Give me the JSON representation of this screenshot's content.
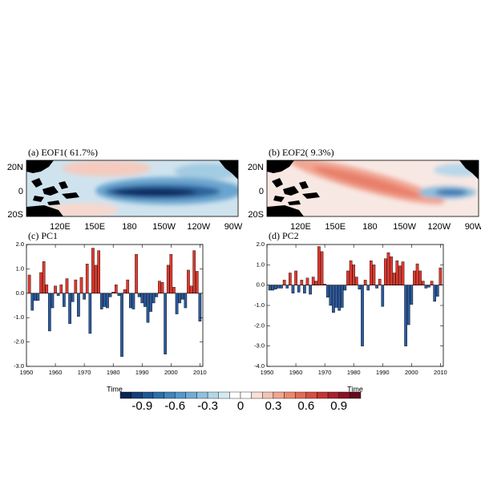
{
  "maps": [
    {
      "title": "(a) EOF1( 61.7%)",
      "lat_labels": [
        "20N",
        "0",
        "20S"
      ],
      "lon_labels": [
        "120E",
        "150E",
        "180",
        "150W",
        "120W",
        "90W"
      ]
    },
    {
      "title": "(b) EOF2(  9.3%)",
      "lat_labels": [
        "20N",
        "0",
        "20S"
      ],
      "lon_labels": [
        "120E",
        "150E",
        "180",
        "150W",
        "120W",
        "90W"
      ]
    }
  ],
  "chart_data": [
    {
      "type": "bar",
      "title": "(c) PC1",
      "x_label": "Time",
      "x": [
        1951,
        1952,
        1953,
        1954,
        1955,
        1956,
        1957,
        1958,
        1959,
        1960,
        1961,
        1962,
        1963,
        1964,
        1965,
        1966,
        1967,
        1968,
        1969,
        1970,
        1971,
        1972,
        1973,
        1974,
        1975,
        1976,
        1977,
        1978,
        1979,
        1980,
        1981,
        1982,
        1983,
        1984,
        1985,
        1986,
        1987,
        1988,
        1989,
        1990,
        1991,
        1992,
        1993,
        1994,
        1995,
        1996,
        1997,
        1998,
        1999,
        2000,
        2001,
        2002,
        2003,
        2004,
        2005,
        2006,
        2007,
        2008,
        2009,
        2010
      ],
      "values": [
        0.75,
        -0.7,
        -0.3,
        -0.3,
        0.85,
        1.3,
        0.35,
        -1.55,
        -0.6,
        0.3,
        -0.1,
        0.35,
        -0.55,
        0.6,
        -1.25,
        -0.35,
        0.55,
        -0.95,
        0.65,
        -0.25,
        1.2,
        -1.65,
        1.85,
        1.15,
        1.75,
        -0.65,
        -0.55,
        -0.6,
        -0.15,
        0.05,
        0.35,
        -0.1,
        -2.6,
        0.15,
        0.55,
        -0.6,
        -0.65,
        1.6,
        -0.15,
        -0.4,
        -0.55,
        -1.2,
        -0.75,
        -0.4,
        -0.15,
        0.5,
        0.45,
        -2.5,
        1.15,
        1.6,
        0.25,
        -0.85,
        -0.4,
        -0.25,
        -0.6,
        0.95,
        0.3,
        1.75,
        0.9,
        -1.15
      ],
      "positive_color": "#e03a2f",
      "negative_color": "#2b5a9e",
      "xlim": [
        1950,
        2011
      ],
      "xticks": [
        1950,
        1960,
        1970,
        1980,
        1990,
        2000,
        2010
      ],
      "ylim": [
        -3,
        2
      ],
      "yticks": [
        {
          "value": 2,
          "label": "2.0"
        },
        {
          "value": 1,
          "label": "1.0"
        },
        {
          "value": 0,
          "label": "0.0"
        },
        {
          "value": -1,
          "label": "-1.0"
        },
        {
          "value": -2,
          "label": "-2.0"
        },
        {
          "value": -3,
          "label": "-3.0"
        }
      ]
    },
    {
      "type": "bar",
      "title": "(d) PC2",
      "x_label": "Time",
      "x": [
        1951,
        1952,
        1953,
        1954,
        1955,
        1956,
        1957,
        1958,
        1959,
        1960,
        1961,
        1962,
        1963,
        1964,
        1965,
        1966,
        1967,
        1968,
        1969,
        1970,
        1971,
        1972,
        1973,
        1974,
        1975,
        1976,
        1977,
        1978,
        1979,
        1980,
        1981,
        1982,
        1983,
        1984,
        1985,
        1986,
        1987,
        1988,
        1989,
        1990,
        1991,
        1992,
        1993,
        1994,
        1995,
        1996,
        1997,
        1998,
        1999,
        2000,
        2001,
        2002,
        2003,
        2004,
        2005,
        2006,
        2007,
        2008,
        2009,
        2010
      ],
      "values": [
        -0.25,
        -0.25,
        -0.2,
        -0.15,
        -0.15,
        0.25,
        -0.15,
        0.6,
        -0.4,
        0.7,
        -0.35,
        0.25,
        -0.4,
        0.35,
        -0.45,
        0.4,
        0.2,
        1.9,
        1.65,
        0.05,
        -0.6,
        -1.0,
        -1.35,
        -1.1,
        -1.25,
        -1.1,
        -0.25,
        0.7,
        1.2,
        1.0,
        0.4,
        -0.2,
        -3.0,
        0.25,
        -0.25,
        1.2,
        1.0,
        -0.15,
        0.3,
        -1.05,
        1.3,
        1.6,
        1.4,
        0.6,
        1.2,
        0.95,
        1.15,
        -3.0,
        -1.95,
        -0.95,
        0.7,
        1.05,
        0.7,
        0.2,
        -0.15,
        -0.1,
        0.2,
        -0.8,
        -0.55,
        0.85
      ],
      "positive_color": "#e03a2f",
      "negative_color": "#2b5a9e",
      "xlim": [
        1950,
        2011
      ],
      "xticks": [
        1950,
        1960,
        1970,
        1980,
        1990,
        2000,
        2010
      ],
      "ylim": [
        -4,
        2
      ],
      "yticks": [
        {
          "value": 2,
          "label": "2.0"
        },
        {
          "value": 1,
          "label": "1.0"
        },
        {
          "value": 0,
          "label": "0.0"
        },
        {
          "value": -1,
          "label": "-1.0"
        },
        {
          "value": -2,
          "label": "-2.0"
        },
        {
          "value": -3,
          "label": "-3.0"
        },
        {
          "value": -4,
          "label": "-4.0"
        }
      ]
    }
  ],
  "colorbar": {
    "lim": [
      -1.1,
      1.1
    ],
    "ticks": [
      -0.9,
      -0.6,
      -0.3,
      0,
      0.3,
      0.6,
      0.9
    ],
    "colors": [
      "#0b2352",
      "#153e78",
      "#1f5792",
      "#2e6ea9",
      "#4283bb",
      "#5898c8",
      "#72acd4",
      "#92c1df",
      "#b3d6e9",
      "#d6eaf3",
      "#ffffff",
      "#ffffff",
      "#fadfd6",
      "#f6c3b2",
      "#f1a68e",
      "#eb896f",
      "#e16c55",
      "#d44f41",
      "#c23532",
      "#a82329",
      "#891523",
      "#640a19"
    ]
  }
}
